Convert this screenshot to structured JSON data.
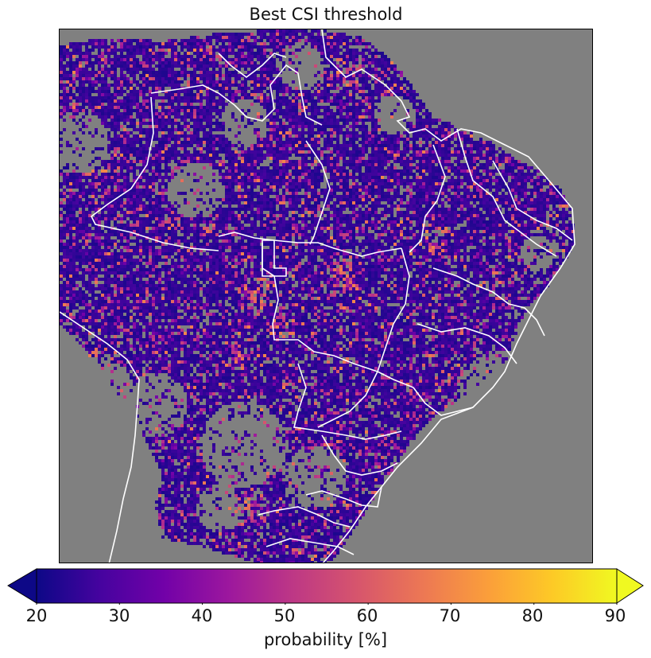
{
  "title": "Best CSI threshold",
  "colorbar": {
    "label": "probability [%]",
    "ticks": [
      "20",
      "30",
      "40",
      "50",
      "60",
      "70",
      "80",
      "90"
    ],
    "range": [
      20,
      90
    ],
    "colormap": "plasma",
    "extend": "both",
    "stops": [
      "#0d0887",
      "#46039f",
      "#7201a8",
      "#9c179e",
      "#bd3786",
      "#d8576b",
      "#ed7953",
      "#fb9f3a",
      "#fdca26",
      "#f0f921"
    ]
  },
  "map": {
    "region": "Brazil",
    "background_color": "#808080",
    "boundary_color": "#ffffff",
    "dominant_value_low": 22,
    "hotspot_value_high": 70
  }
}
